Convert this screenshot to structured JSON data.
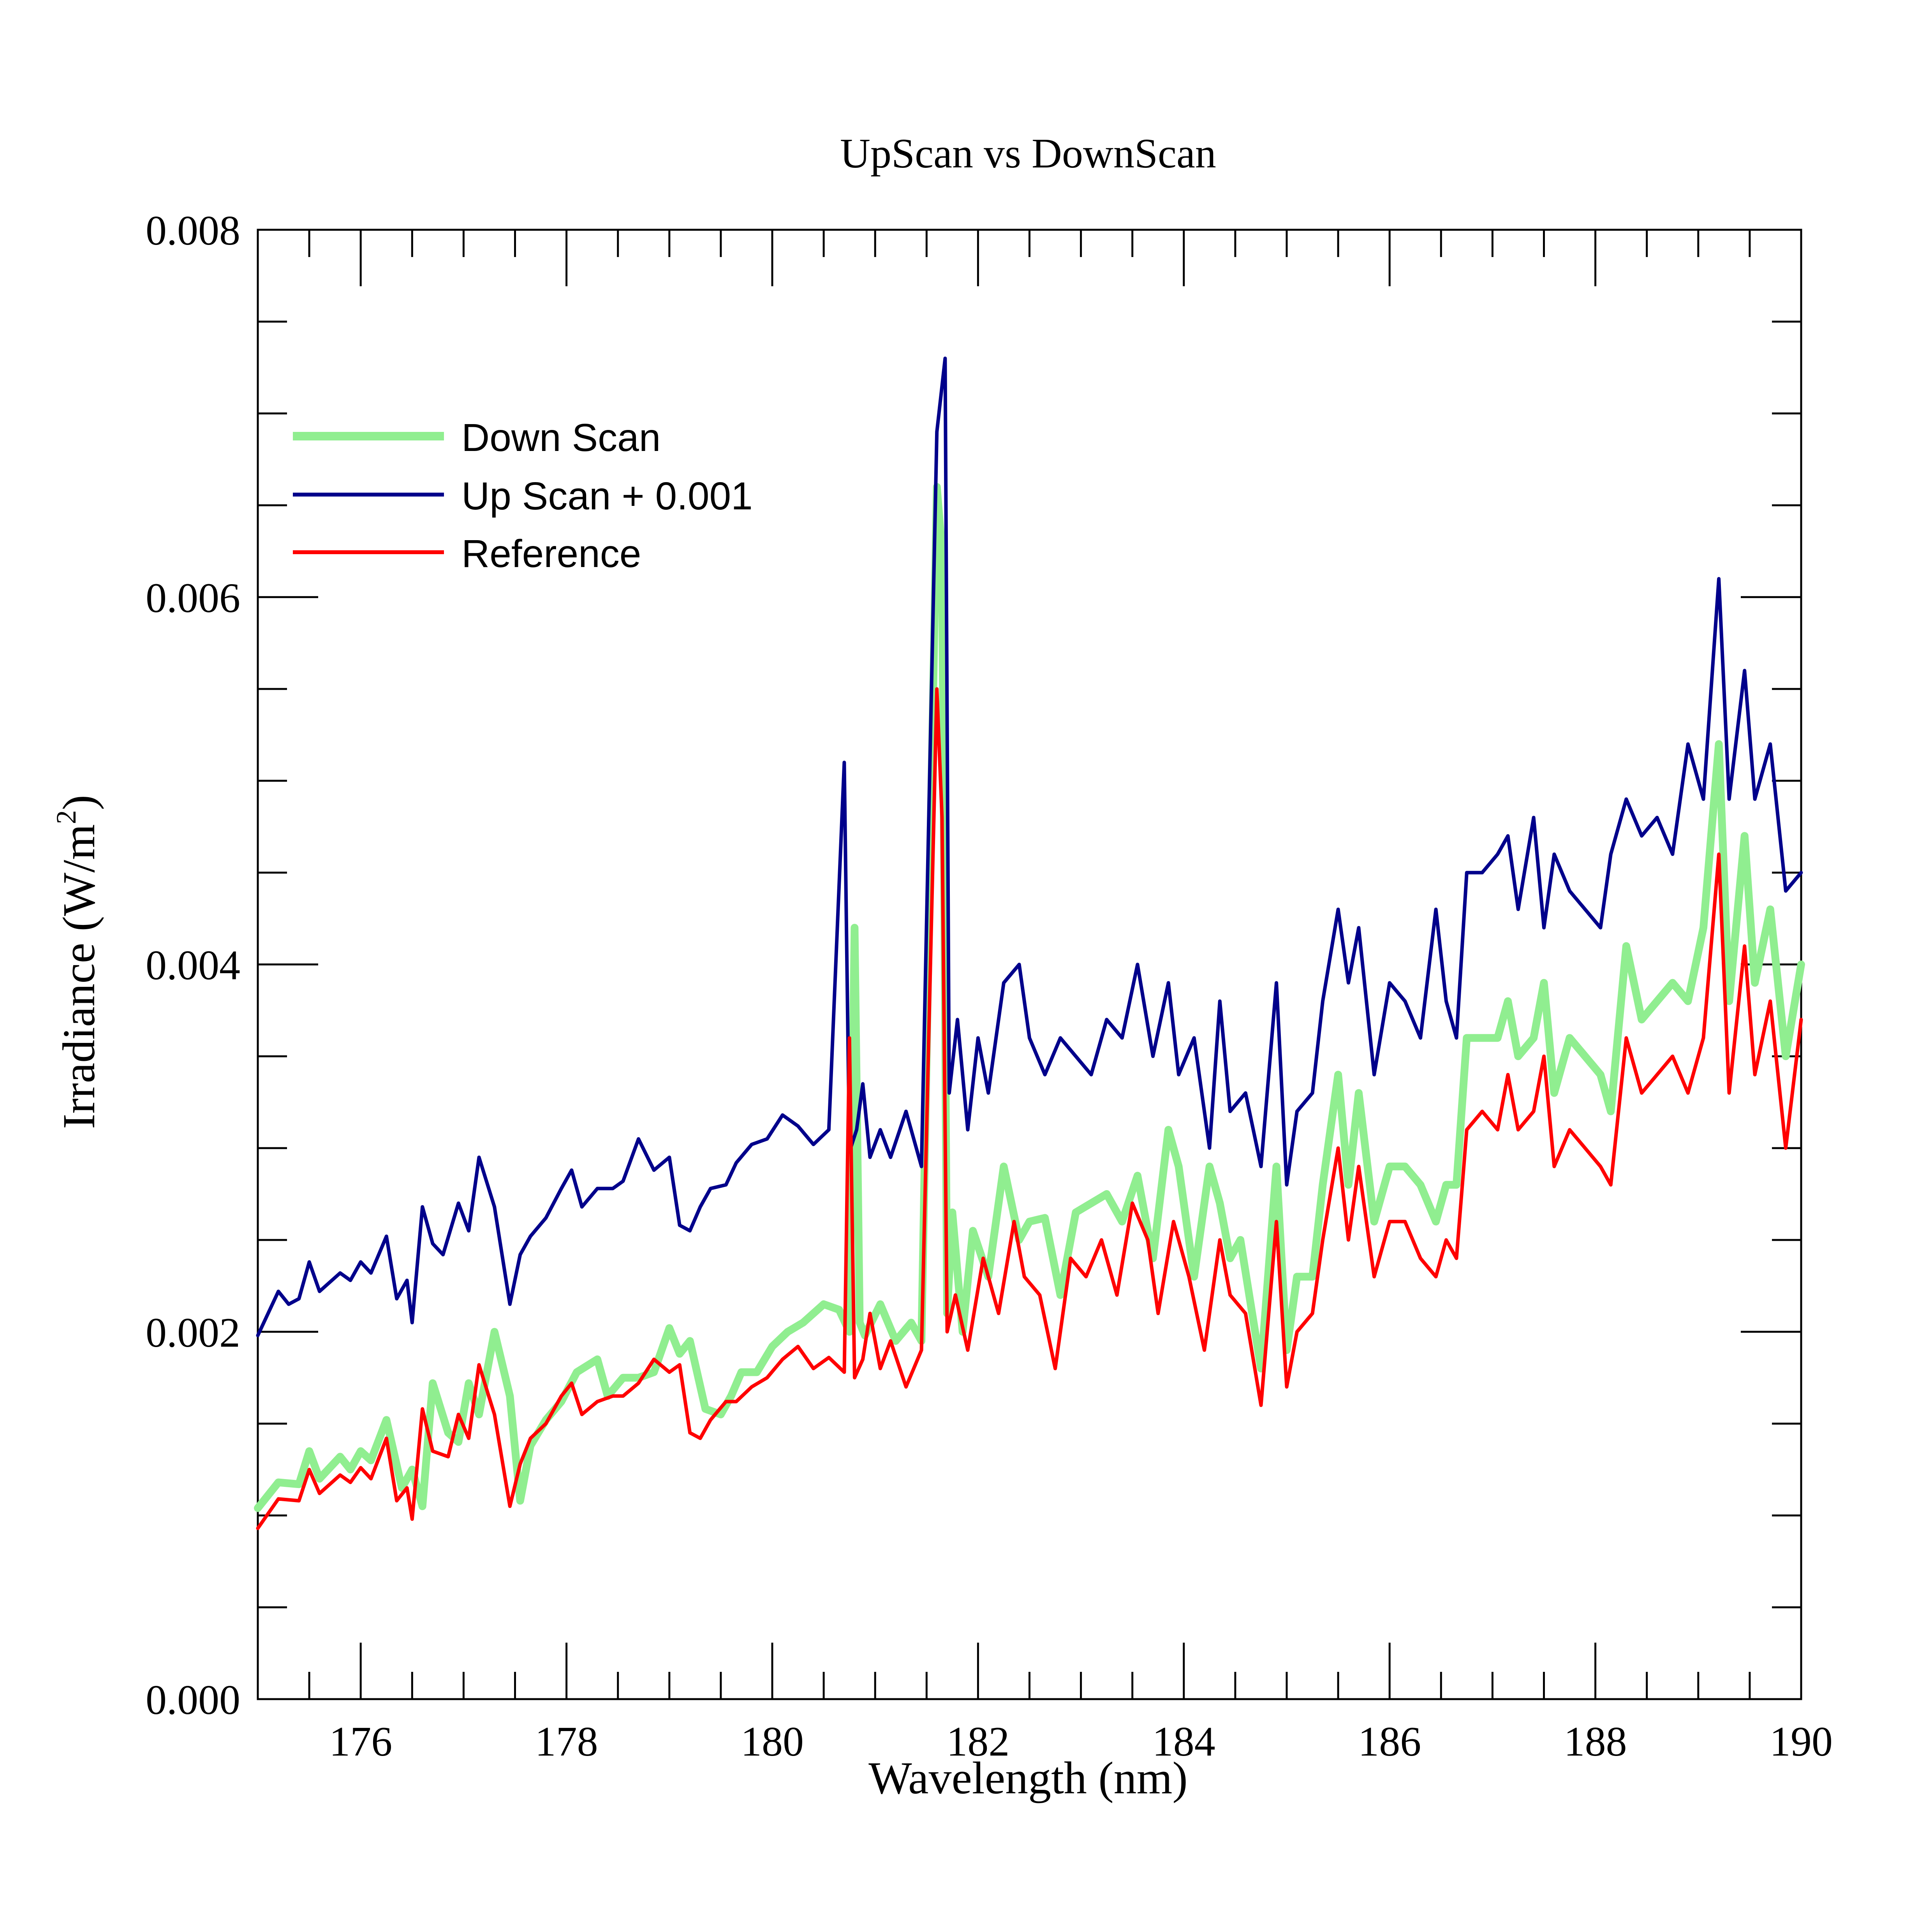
{
  "chart_data": {
    "type": "line",
    "title": "UpScan vs DownScan",
    "xlabel": "Wavelength (nm)",
    "ylabel": "Irradiance (W/m",
    "ylabel_sup": "2",
    "ylabel_close": ")",
    "xlim": [
      175,
      190
    ],
    "ylim": [
      0,
      0.008
    ],
    "x_ticks": [
      176,
      178,
      180,
      182,
      184,
      186,
      188,
      190
    ],
    "x_tick_labels": [
      "176",
      "178",
      "180",
      "182",
      "184",
      "186",
      "188",
      "190"
    ],
    "y_ticks": [
      0,
      0.002,
      0.004,
      0.006,
      0.008
    ],
    "y_tick_labels": [
      "0.000",
      "0.002",
      "0.004",
      "0.006",
      "0.008"
    ],
    "grid": false,
    "legend_position": "top-left",
    "series": [
      {
        "name": "Down Scan",
        "color": "#90EE90",
        "x": [
          175.0,
          175.2,
          175.4,
          175.5,
          175.6,
          175.8,
          175.9,
          176.0,
          176.1,
          176.25,
          176.4,
          176.5,
          176.6,
          176.7,
          176.85,
          176.95,
          177.05,
          177.15,
          177.3,
          177.45,
          177.55,
          177.65,
          177.8,
          177.95,
          178.1,
          178.3,
          178.4,
          178.55,
          178.7,
          178.85,
          179.0,
          179.1,
          179.2,
          179.35,
          179.5,
          179.6,
          179.7,
          179.85,
          180.0,
          180.15,
          180.3,
          180.5,
          180.65,
          180.75,
          180.8,
          180.85,
          180.9,
          181.05,
          181.2,
          181.35,
          181.45,
          181.6,
          181.65,
          181.7,
          181.75,
          181.85,
          181.95,
          182.1,
          182.25,
          182.4,
          182.5,
          182.65,
          182.8,
          182.95,
          183.1,
          183.25,
          183.4,
          183.55,
          183.7,
          183.85,
          183.95,
          184.1,
          184.25,
          184.35,
          184.45,
          184.55,
          184.75,
          184.9,
          185.0,
          185.1,
          185.25,
          185.35,
          185.5,
          185.6,
          185.7,
          185.85,
          186.0,
          186.15,
          186.3,
          186.45,
          186.55,
          186.65,
          186.75,
          186.9,
          187.05,
          187.15,
          187.25,
          187.4,
          187.5,
          187.6,
          187.75,
          187.9,
          188.05,
          188.15,
          188.3,
          188.45,
          188.6,
          188.75,
          188.9,
          189.05,
          189.2,
          189.3,
          189.45,
          189.55,
          189.7,
          189.85,
          190.0
        ],
        "y": [
          0.00104,
          0.00118,
          0.00117,
          0.00135,
          0.0012,
          0.00132,
          0.00125,
          0.00135,
          0.0013,
          0.00152,
          0.00115,
          0.00125,
          0.00105,
          0.00172,
          0.00145,
          0.0014,
          0.00172,
          0.00155,
          0.002,
          0.00165,
          0.00108,
          0.00138,
          0.00152,
          0.00162,
          0.00178,
          0.00185,
          0.00165,
          0.00175,
          0.00175,
          0.00178,
          0.00202,
          0.00188,
          0.00195,
          0.00158,
          0.00155,
          0.00165,
          0.00178,
          0.00178,
          0.00192,
          0.002,
          0.00205,
          0.00215,
          0.00212,
          0.002,
          0.0042,
          0.00205,
          0.00198,
          0.00215,
          0.00195,
          0.00205,
          0.00195,
          0.0066,
          0.00625,
          0.0021,
          0.00265,
          0.002,
          0.00255,
          0.0023,
          0.0029,
          0.0025,
          0.0026,
          0.00262,
          0.0022,
          0.00265,
          0.0027,
          0.00275,
          0.0026,
          0.00285,
          0.0024,
          0.0031,
          0.0029,
          0.0023,
          0.0029,
          0.0027,
          0.0024,
          0.0025,
          0.0018,
          0.0029,
          0.0019,
          0.0023,
          0.0023,
          0.0028,
          0.0034,
          0.0028,
          0.0033,
          0.0026,
          0.0029,
          0.0029,
          0.0028,
          0.0026,
          0.0028,
          0.0028,
          0.0036,
          0.0036,
          0.0036,
          0.0038,
          0.0035,
          0.0036,
          0.0039,
          0.0033,
          0.0036,
          0.0035,
          0.0034,
          0.0032,
          0.0041,
          0.0037,
          0.0038,
          0.0039,
          0.0038,
          0.0042,
          0.0052,
          0.0038,
          0.0047,
          0.0039,
          0.0043,
          0.0035,
          0.004
        ]
      },
      {
        "name": "Up Scan + 0.001",
        "color": "#00008B",
        "x": [
          175.0,
          175.2,
          175.3,
          175.4,
          175.5,
          175.6,
          175.8,
          175.9,
          176.0,
          176.1,
          176.25,
          176.35,
          176.45,
          176.5,
          176.6,
          176.7,
          176.8,
          176.95,
          177.05,
          177.15,
          177.3,
          177.45,
          177.55,
          177.65,
          177.8,
          177.95,
          178.05,
          178.15,
          178.3,
          178.45,
          178.55,
          178.7,
          178.85,
          179.0,
          179.1,
          179.2,
          179.3,
          179.4,
          179.55,
          179.65,
          179.8,
          179.95,
          180.1,
          180.25,
          180.4,
          180.55,
          180.7,
          180.75,
          180.82,
          180.88,
          180.95,
          181.05,
          181.15,
          181.3,
          181.45,
          181.6,
          181.68,
          181.72,
          181.8,
          181.9,
          182.0,
          182.1,
          182.25,
          182.4,
          182.5,
          182.65,
          182.8,
          182.95,
          183.1,
          183.25,
          183.4,
          183.55,
          183.7,
          183.85,
          183.95,
          184.1,
          184.25,
          184.35,
          184.45,
          184.6,
          184.75,
          184.9,
          185.0,
          185.1,
          185.25,
          185.35,
          185.5,
          185.6,
          185.7,
          185.85,
          186.0,
          186.15,
          186.3,
          186.45,
          186.55,
          186.65,
          186.75,
          186.9,
          187.05,
          187.15,
          187.25,
          187.4,
          187.5,
          187.6,
          187.75,
          187.9,
          188.05,
          188.15,
          188.3,
          188.45,
          188.6,
          188.75,
          188.9,
          189.05,
          189.2,
          189.3,
          189.45,
          189.55,
          189.7,
          189.85,
          190.0
        ],
        "y": [
          0.00198,
          0.00222,
          0.00215,
          0.00218,
          0.00238,
          0.00222,
          0.00232,
          0.00228,
          0.00238,
          0.00232,
          0.00252,
          0.00218,
          0.00228,
          0.00205,
          0.00268,
          0.00248,
          0.00242,
          0.0027,
          0.00255,
          0.00295,
          0.00268,
          0.00215,
          0.00242,
          0.00252,
          0.00262,
          0.00278,
          0.00288,
          0.00268,
          0.00278,
          0.00278,
          0.00282,
          0.00305,
          0.00288,
          0.00295,
          0.00258,
          0.00255,
          0.00268,
          0.00278,
          0.0028,
          0.00292,
          0.00302,
          0.00305,
          0.00318,
          0.00312,
          0.00302,
          0.0031,
          0.0051,
          0.00298,
          0.0031,
          0.00335,
          0.00295,
          0.0031,
          0.00295,
          0.0032,
          0.0029,
          0.0069,
          0.0073,
          0.0033,
          0.0037,
          0.0031,
          0.0036,
          0.0033,
          0.0039,
          0.004,
          0.0036,
          0.0034,
          0.0036,
          0.0035,
          0.0034,
          0.0037,
          0.0036,
          0.004,
          0.0035,
          0.0039,
          0.0034,
          0.0036,
          0.003,
          0.0038,
          0.0032,
          0.0033,
          0.0029,
          0.0039,
          0.0028,
          0.0032,
          0.0033,
          0.0038,
          0.0043,
          0.0039,
          0.0042,
          0.0034,
          0.0039,
          0.0038,
          0.0036,
          0.0043,
          0.0038,
          0.0036,
          0.0045,
          0.0045,
          0.0046,
          0.0047,
          0.0043,
          0.0048,
          0.0042,
          0.0046,
          0.0044,
          0.0043,
          0.0042,
          0.0046,
          0.0049,
          0.0047,
          0.0048,
          0.0046,
          0.0052,
          0.0049,
          0.0061,
          0.0049,
          0.0056,
          0.0049,
          0.0052,
          0.0044,
          0.0045
        ]
      },
      {
        "name": "Reference",
        "color": "#FF0000",
        "x": [
          175.0,
          175.2,
          175.4,
          175.5,
          175.6,
          175.8,
          175.9,
          176.0,
          176.1,
          176.25,
          176.35,
          176.45,
          176.5,
          176.6,
          176.7,
          176.85,
          176.95,
          177.05,
          177.15,
          177.3,
          177.45,
          177.55,
          177.65,
          177.8,
          177.95,
          178.05,
          178.15,
          178.3,
          178.45,
          178.55,
          178.7,
          178.85,
          179.0,
          179.1,
          179.2,
          179.3,
          179.4,
          179.55,
          179.65,
          179.8,
          179.95,
          180.1,
          180.25,
          180.4,
          180.55,
          180.7,
          180.75,
          180.8,
          180.88,
          180.95,
          181.05,
          181.15,
          181.3,
          181.45,
          181.6,
          181.65,
          181.7,
          181.78,
          181.9,
          182.05,
          182.2,
          182.35,
          182.45,
          182.6,
          182.75,
          182.9,
          183.05,
          183.2,
          183.35,
          183.5,
          183.65,
          183.75,
          183.9,
          184.05,
          184.2,
          184.35,
          184.45,
          184.6,
          184.75,
          184.9,
          185.0,
          185.1,
          185.25,
          185.35,
          185.5,
          185.6,
          185.7,
          185.85,
          186.0,
          186.15,
          186.3,
          186.45,
          186.55,
          186.65,
          186.75,
          186.9,
          187.05,
          187.15,
          187.25,
          187.4,
          187.5,
          187.6,
          187.75,
          187.9,
          188.05,
          188.15,
          188.3,
          188.45,
          188.6,
          188.75,
          188.9,
          189.05,
          189.2,
          189.3,
          189.45,
          189.55,
          189.7,
          189.85,
          190.0
        ],
        "y": [
          0.00093,
          0.00109,
          0.00108,
          0.00125,
          0.00112,
          0.00122,
          0.00118,
          0.00126,
          0.0012,
          0.00142,
          0.00108,
          0.00115,
          0.00098,
          0.00158,
          0.00135,
          0.00132,
          0.00155,
          0.00142,
          0.00182,
          0.00155,
          0.00105,
          0.00128,
          0.00142,
          0.0015,
          0.00165,
          0.00172,
          0.00155,
          0.00162,
          0.00165,
          0.00165,
          0.00172,
          0.00185,
          0.00178,
          0.00182,
          0.00145,
          0.00142,
          0.00152,
          0.00162,
          0.00162,
          0.0017,
          0.00175,
          0.00185,
          0.00192,
          0.0018,
          0.00186,
          0.00178,
          0.0036,
          0.00175,
          0.00185,
          0.0021,
          0.0018,
          0.00195,
          0.0017,
          0.0019,
          0.0055,
          0.0048,
          0.002,
          0.0022,
          0.0019,
          0.0024,
          0.0021,
          0.0026,
          0.0023,
          0.0022,
          0.0018,
          0.0024,
          0.0023,
          0.0025,
          0.0022,
          0.0027,
          0.0025,
          0.0021,
          0.0026,
          0.0023,
          0.0019,
          0.0025,
          0.0022,
          0.0021,
          0.0016,
          0.0026,
          0.0017,
          0.002,
          0.0021,
          0.0025,
          0.003,
          0.0025,
          0.0029,
          0.0023,
          0.0026,
          0.0026,
          0.0024,
          0.0023,
          0.0025,
          0.0024,
          0.0031,
          0.0032,
          0.0031,
          0.0034,
          0.0031,
          0.0032,
          0.0035,
          0.0029,
          0.0031,
          0.003,
          0.0029,
          0.0028,
          0.0036,
          0.0033,
          0.0034,
          0.0035,
          0.0033,
          0.0036,
          0.0046,
          0.0033,
          0.0041,
          0.0034,
          0.0038,
          0.003,
          0.0037
        ]
      }
    ]
  }
}
